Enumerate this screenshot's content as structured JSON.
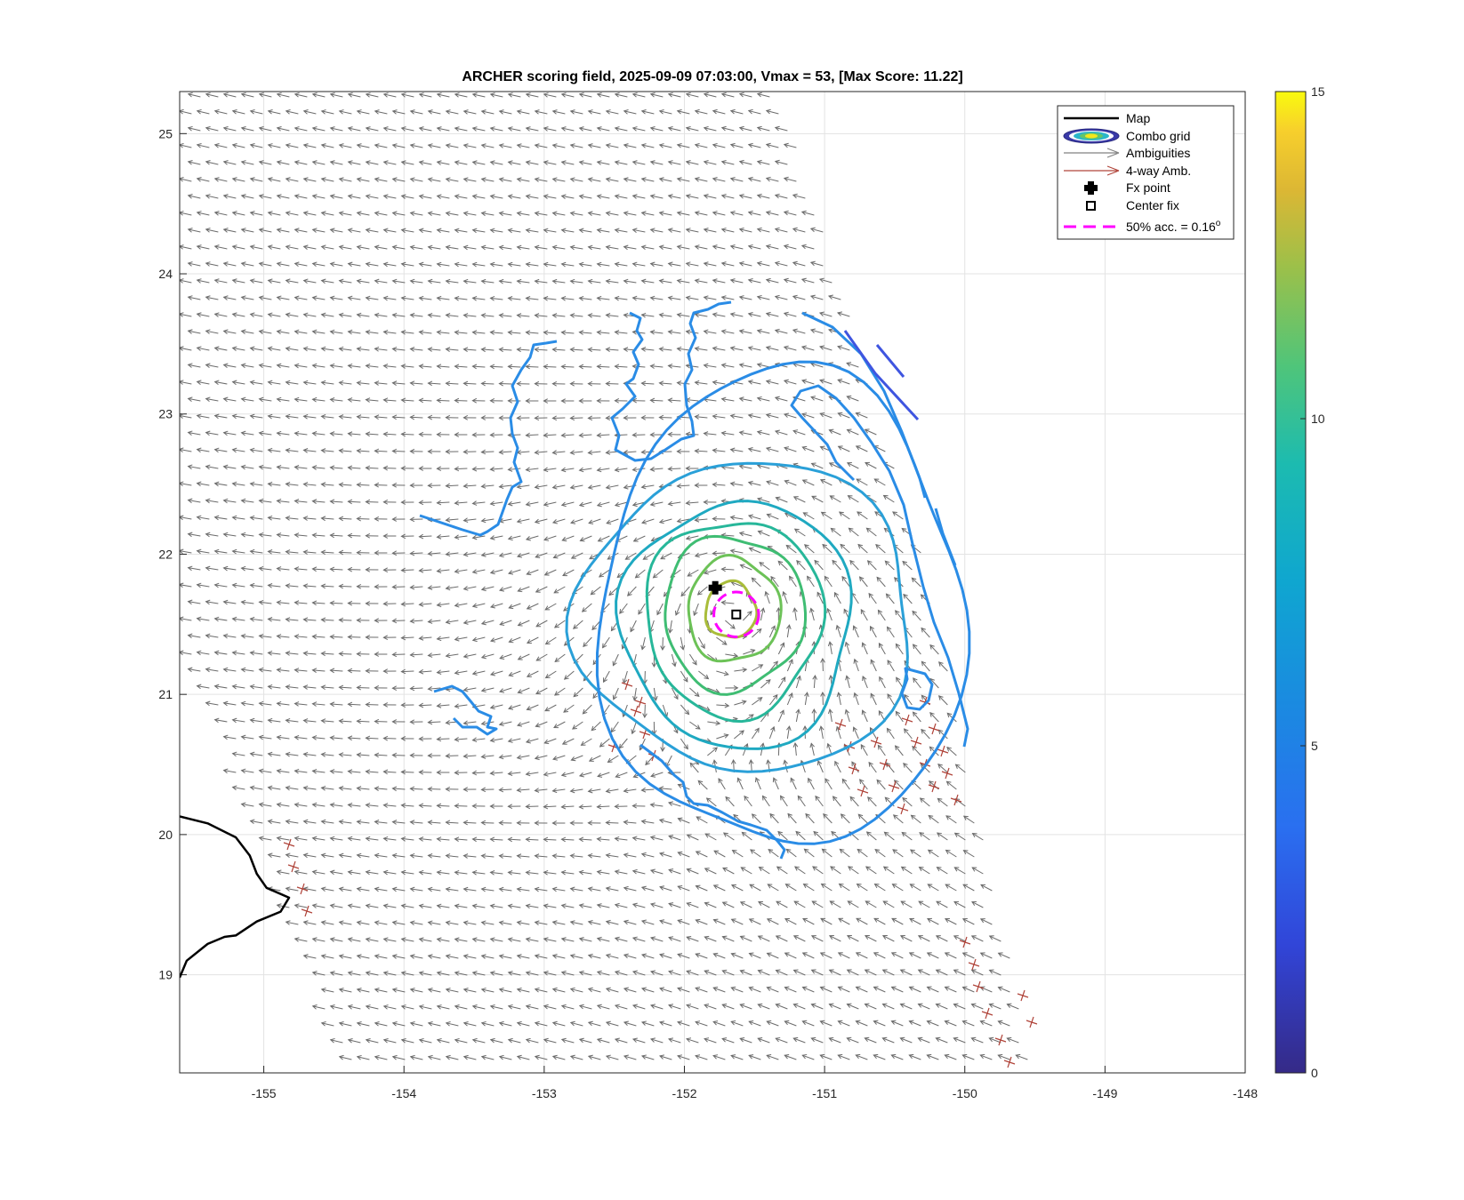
{
  "title": "ARCHER scoring field, 2025-09-09 07:03:00, Vmax = 53, [Max Score: 11.22]",
  "chart_data": {
    "type": "contour",
    "title": "ARCHER scoring field, 2025-09-09 07:03:00, Vmax = 53, [Max Score: 11.22]",
    "xlabel": "",
    "ylabel": "",
    "xlim": [
      -155.6,
      -148
    ],
    "ylim": [
      18.3,
      25.3
    ],
    "xticks": [
      -155,
      -154,
      -153,
      -152,
      -151,
      -150,
      -149,
      -148
    ],
    "yticks": [
      19,
      20,
      21,
      22,
      23,
      24,
      25
    ],
    "grid": true,
    "colorbar": {
      "range": [
        0,
        15
      ],
      "ticks": [
        0,
        5,
        10,
        15
      ],
      "colormap": "parula"
    },
    "legend": {
      "location": "top-right",
      "entries": [
        {
          "label": "Map",
          "style": "line",
          "color": "#000000"
        },
        {
          "label": "Combo grid",
          "style": "ellipse-contours"
        },
        {
          "label": "Ambiguities",
          "style": "arrow",
          "color": "#808080"
        },
        {
          "label": "4-way Amb.",
          "style": "arrow",
          "color": "#b0443a"
        },
        {
          "label": "Fx point",
          "style": "cross",
          "color": "#000000"
        },
        {
          "label": "Center fix",
          "style": "square",
          "color": "#000000"
        },
        {
          "label": "50% acc. = 0.16",
          "label_sup": "o",
          "style": "dashed",
          "color": "#ff00ff"
        }
      ]
    },
    "fx_point": [
      -151.78,
      21.76
    ],
    "center_fix": [
      -151.63,
      21.57
    ],
    "accuracy_radius_deg": 0.16,
    "contours": [
      {
        "level": 11,
        "color": "#a9bd3a",
        "center": [
          -151.67,
          21.6
        ],
        "rx": 0.18,
        "ry": 0.2
      },
      {
        "level": 10,
        "color": "#6cc257",
        "center": [
          -151.65,
          21.6
        ],
        "rx": 0.33,
        "ry": 0.37
      },
      {
        "level": 9,
        "color": "#3fbd73",
        "center": [
          -151.65,
          21.58
        ],
        "rx": 0.5,
        "ry": 0.55
      },
      {
        "level": 8,
        "color": "#27b79a",
        "center": [
          -151.65,
          21.55
        ],
        "rx": 0.63,
        "ry": 0.7
      },
      {
        "level": 7,
        "color": "#1fa9c1",
        "center": [
          -151.62,
          21.5
        ],
        "rx": 0.82,
        "ry": 0.88
      },
      {
        "level": 6,
        "color": "#2aa0d8",
        "center": [
          -151.55,
          21.55
        ],
        "rx": 1.2,
        "ry": 1.1
      },
      {
        "level": 5,
        "color": "#2a8ce6",
        "center": [
          -151.3,
          21.6
        ],
        "rx": 1.3,
        "ry": 1.7
      }
    ],
    "wind_field": {
      "swath_corners": [
        [
          -155.6,
          25.3
        ],
        [
          -151.3,
          25.3
        ],
        [
          -150.3,
          22.0
        ],
        [
          -149.5,
          18.3
        ],
        [
          -154.4,
          18.3
        ],
        [
          -155.6,
          21.5
        ]
      ],
      "storm_center": [
        -151.65,
        21.6
      ]
    },
    "coastline": [
      [
        -155.6,
        20.13
      ],
      [
        -155.4,
        20.08
      ],
      [
        -155.2,
        19.98
      ],
      [
        -155.1,
        19.85
      ],
      [
        -155.05,
        19.72
      ],
      [
        -154.98,
        19.62
      ],
      [
        -154.82,
        19.55
      ],
      [
        -154.88,
        19.45
      ],
      [
        -155.05,
        19.38
      ],
      [
        -155.2,
        19.28
      ],
      [
        -155.28,
        19.27
      ],
      [
        -155.4,
        19.22
      ],
      [
        -155.55,
        19.1
      ],
      [
        -155.6,
        18.98
      ]
    ]
  }
}
